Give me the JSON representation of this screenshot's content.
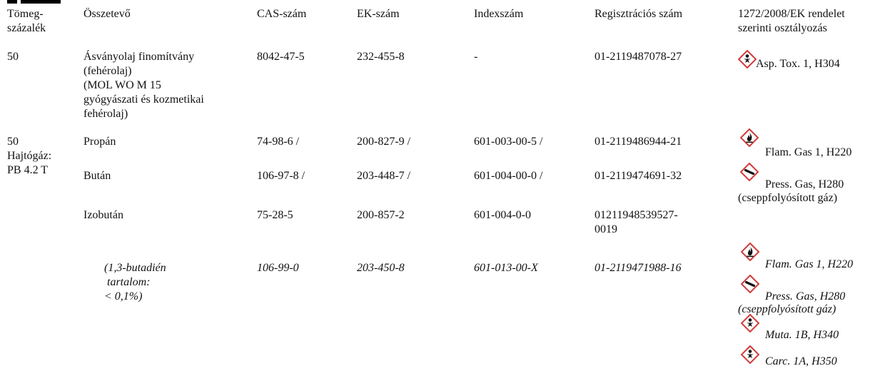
{
  "headers": {
    "mass": [
      "Tömeg-",
      "százalék"
    ],
    "component": "Összetevő",
    "cas": "CAS-szám",
    "ek": "EK-szám",
    "index": "Indexszám",
    "reg": "Regisztrációs szám",
    "class": [
      "1272/2008/EK rendelet",
      "szerinti osztályozás"
    ]
  },
  "rows": [
    {
      "mass": "50",
      "component": [
        "Ásványolaj finomítvány",
        "(fehérolaj)",
        "(MOL WO M 15",
        "gyógyászati és kozmetikai",
        "fehérolaj)"
      ],
      "cas": "8042-47-5",
      "ek": "232-455-8",
      "index": "-",
      "reg": "01-2119487078-27",
      "classes": [
        {
          "icon": "health-hazard-icon",
          "label": "Asp. Tox. 1, H304"
        }
      ]
    },
    {
      "mass": [
        "50",
        "Hajtógáz:",
        "PB 4.2 T"
      ],
      "component": "Propán",
      "cas": "74-98-6 /",
      "ek": "200-827-9 /",
      "index": "601-003-00-5 /",
      "reg": "01-2119486944-21",
      "classes": [
        {
          "icon": "flame-icon",
          "label": "Flam. Gas 1, H220"
        }
      ]
    },
    {
      "component": "Bután",
      "cas": "106-97-8 /",
      "ek": "203-448-7 /",
      "index": "601-004-00-0 /",
      "reg": "01-2119474691-32",
      "classes": [
        {
          "icon": "gas-cylinder-icon",
          "label": "Press. Gas, H280",
          "note": "(cseppfolyósított gáz)"
        }
      ]
    },
    {
      "component": "Izobután",
      "cas": "75-28-5",
      "ek": "200-857-2",
      "index": "601-004-0-0",
      "reg": [
        "01211948539527-",
        "0019"
      ]
    },
    {
      "component": [
        "(1,3-butadién",
        "tartalom:",
        "< 0,1%)"
      ],
      "cas": "106-99-0",
      "ek": "203-450-8",
      "index": "601-013-00-X",
      "reg": "01-2119471988-16",
      "classes": [
        {
          "icon": "flame-icon",
          "label": "Flam. Gas 1, H220"
        },
        {
          "icon": "gas-cylinder-icon",
          "label": "Press. Gas, H280",
          "note": "(cseppfolyósított gáz)"
        },
        {
          "icon": "health-hazard-icon",
          "label": "Muta. 1B, H340"
        },
        {
          "icon": "health-hazard-icon",
          "label": "Carc. 1A, H350"
        }
      ]
    }
  ],
  "colors": {
    "pictogram_border": "#d23b3b",
    "text": "#111111"
  }
}
